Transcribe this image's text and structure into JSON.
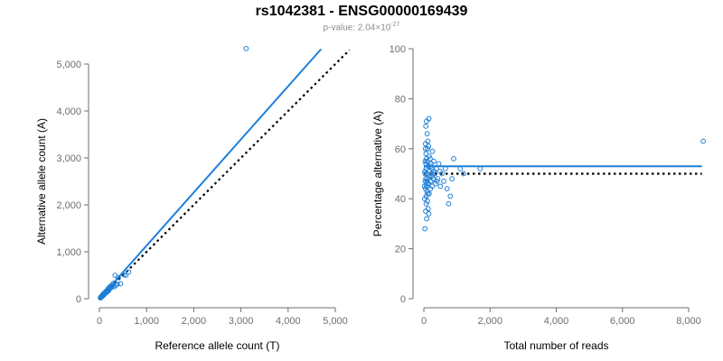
{
  "title": "rs1042381 - ENSG00000169439",
  "subtitle": {
    "prefix": "p-value: 2.04×10",
    "exponent": "-27"
  },
  "colors": {
    "points": "#1f7fd6",
    "fit_line": "#1f7fd6",
    "ref_line": "#000000",
    "axis": "#6e6e6e"
  },
  "chart_data": [
    {
      "type": "scatter",
      "xlabel": "Reference allele count (T)",
      "ylabel": "Alternative allele count (A)",
      "xlim": [
        0,
        5000
      ],
      "ylim": [
        0,
        5000
      ],
      "xticks": [
        0,
        1000,
        2000,
        3000,
        4000,
        5000
      ],
      "yticks": [
        0,
        1000,
        2000,
        3000,
        4000,
        5000
      ],
      "xtick_labels": [
        "0",
        "1,000",
        "2,000",
        "3,000",
        "4,000",
        "5,000"
      ],
      "ytick_labels": [
        "0",
        "1,000",
        "2,000",
        "3,000",
        "4,000",
        "5,000"
      ],
      "grid": false,
      "lines": [
        {
          "role": "fit",
          "style": "solid",
          "color": "#1f7fd6",
          "x": [
            0,
            4700
          ],
          "y": [
            0,
            5320
          ]
        },
        {
          "role": "reference",
          "style": "dotted",
          "color": "#000000",
          "x": [
            0,
            5300
          ],
          "y": [
            0,
            5300
          ]
        }
      ],
      "points": {
        "x": [
          3110,
          620,
          560,
          520,
          450,
          400,
          380,
          350,
          330,
          320,
          300,
          280,
          260,
          250,
          240,
          230,
          220,
          210,
          200,
          190,
          180,
          170,
          160,
          150,
          140,
          130,
          120,
          110,
          100,
          95,
          90,
          85,
          80,
          75,
          70,
          65,
          60,
          55,
          50,
          45,
          40,
          35,
          30,
          25,
          20
        ],
        "y": [
          5330,
          570,
          500,
          510,
          320,
          450,
          310,
          290,
          500,
          260,
          330,
          280,
          250,
          280,
          230,
          230,
          250,
          210,
          180,
          220,
          170,
          180,
          140,
          150,
          160,
          130,
          120,
          100,
          120,
          90,
          80,
          100,
          70,
          70,
          80,
          60,
          60,
          50,
          60,
          40,
          40,
          30,
          30,
          20,
          20
        ]
      }
    },
    {
      "type": "scatter",
      "xlabel": "Total number of reads",
      "ylabel": "Percentage alternative (A)",
      "xlim": [
        0,
        8000
      ],
      "ylim": [
        0,
        100
      ],
      "xticks": [
        0,
        2000,
        4000,
        6000,
        8000
      ],
      "yticks": [
        0,
        20,
        40,
        60,
        80,
        100
      ],
      "xtick_labels": [
        "0",
        "2,000",
        "4,000",
        "6,000",
        "8,000"
      ],
      "ytick_labels": [
        "0",
        "20",
        "40",
        "60",
        "80",
        "100"
      ],
      "grid": false,
      "lines": [
        {
          "role": "fit",
          "style": "solid",
          "color": "#1f7fd6",
          "x": [
            0,
            8400
          ],
          "y": [
            53,
            53
          ]
        },
        {
          "role": "reference",
          "style": "dotted",
          "color": "#000000",
          "x": [
            0,
            8400
          ],
          "y": [
            50,
            50
          ]
        }
      ],
      "points": {
        "x": [
          8440,
          1700,
          1200,
          1100,
          900,
          850,
          800,
          750,
          700,
          650,
          600,
          550,
          500,
          480,
          450,
          420,
          400,
          380,
          350,
          330,
          300,
          280,
          260,
          250,
          240,
          230,
          220,
          210,
          200,
          190,
          180,
          170,
          160,
          150,
          140,
          130,
          120,
          110,
          100,
          95,
          90,
          85,
          80,
          75,
          70,
          65,
          60,
          55,
          50,
          45,
          40,
          35,
          30,
          25,
          20,
          60,
          80,
          100,
          120,
          140,
          160,
          90,
          70,
          110,
          130,
          150,
          200,
          250,
          300,
          50,
          40,
          30,
          60,
          80,
          100,
          120
        ],
        "y": [
          63,
          52,
          50,
          52,
          56,
          48,
          41,
          38,
          44,
          52,
          47,
          50,
          45,
          51,
          54,
          48,
          47,
          52,
          46,
          50,
          55,
          48,
          59,
          45,
          52,
          50,
          54,
          47,
          44,
          56,
          49,
          51,
          42,
          72,
          46,
          53,
          48,
          60,
          50,
          55,
          47,
          32,
          45,
          41,
          52,
          58,
          48,
          35,
          60,
          44,
          55,
          50,
          28,
          40,
          45,
          69,
          71,
          66,
          63,
          61,
          57,
          43,
          38,
          39,
          36,
          34,
          53,
          49,
          51,
          62,
          47,
          51,
          54,
          56,
          46,
          42
        ]
      }
    }
  ]
}
